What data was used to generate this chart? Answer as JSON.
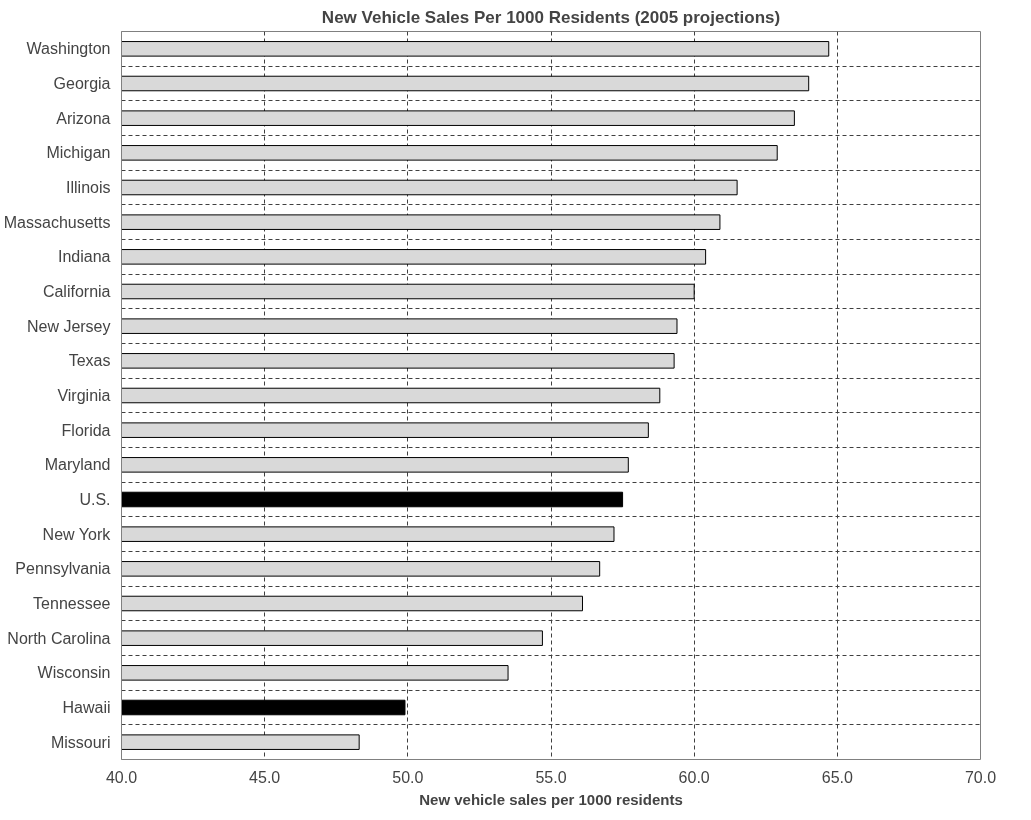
{
  "chart_data": {
    "type": "bar",
    "orientation": "horizontal",
    "title": "New Vehicle Sales Per 1000 Residents (2005 projections)",
    "xlabel": "New vehicle sales per 1000 residents",
    "categories": [
      "Washington",
      "Georgia",
      "Arizona",
      "Michigan",
      "Illinois",
      "Massachusetts",
      "Indiana",
      "California",
      "New Jersey",
      "Texas",
      "Virginia",
      "Florida",
      "Maryland",
      "U.S.",
      "New York",
      "Pennsylvania",
      "Tennessee",
      "North Carolina",
      "Wisconsin",
      "Hawaii",
      "Missouri"
    ],
    "values": [
      64.7,
      64.0,
      63.5,
      62.9,
      61.5,
      60.9,
      60.4,
      60.0,
      59.4,
      59.3,
      58.8,
      58.4,
      57.7,
      57.5,
      57.2,
      56.7,
      56.1,
      54.7,
      53.5,
      49.9,
      48.3
    ],
    "colors": [
      "#d9d9d9",
      "#d9d9d9",
      "#d9d9d9",
      "#d9d9d9",
      "#d9d9d9",
      "#d9d9d9",
      "#d9d9d9",
      "#d9d9d9",
      "#d9d9d9",
      "#d9d9d9",
      "#d9d9d9",
      "#d9d9d9",
      "#d9d9d9",
      "#000000",
      "#d9d9d9",
      "#d9d9d9",
      "#d9d9d9",
      "#d9d9d9",
      "#d9d9d9",
      "#000000",
      "#d9d9d9"
    ],
    "xlim": [
      40,
      70
    ],
    "xticks": [
      {
        "value": 40,
        "label": "40.0"
      },
      {
        "value": 45,
        "label": "45.0"
      },
      {
        "value": 50,
        "label": "50.0"
      },
      {
        "value": 55,
        "label": "55.0"
      },
      {
        "value": 60,
        "label": "60.0"
      },
      {
        "value": 65,
        "label": "65.0"
      },
      {
        "value": 70,
        "label": "70.0"
      }
    ],
    "grid": true
  }
}
